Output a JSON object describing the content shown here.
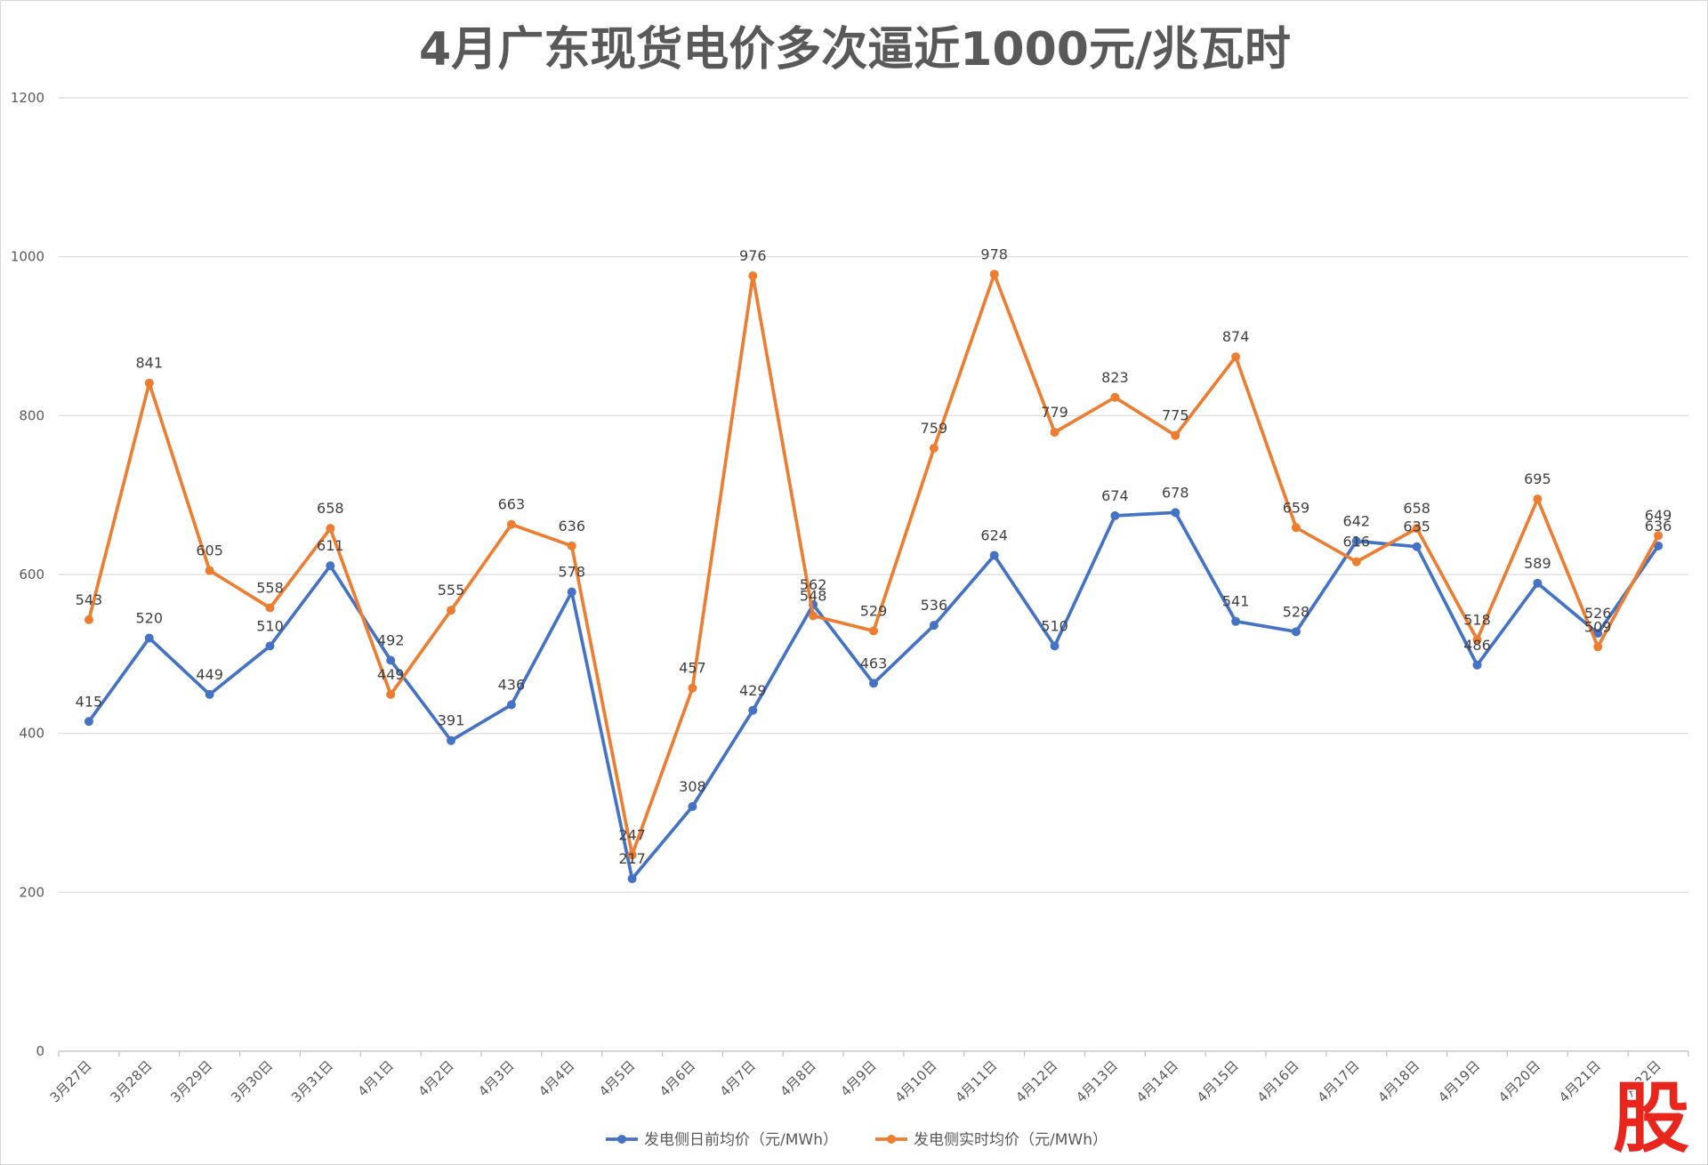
{
  "chart_data": {
    "type": "line",
    "title": "4月广东现货电价多次逼近1000元/兆瓦时",
    "categories": [
      "3月27日",
      "3月28日",
      "3月29日",
      "3月30日",
      "3月31日",
      "4月1日",
      "4月2日",
      "4月3日",
      "4月4日",
      "4月5日",
      "4月6日",
      "4月7日",
      "4月8日",
      "4月9日",
      "4月10日",
      "4月11日",
      "4月12日",
      "4月13日",
      "4月14日",
      "4月15日",
      "4月16日",
      "4月17日",
      "4月18日",
      "4月19日",
      "4月20日",
      "4月21日",
      "4月22日"
    ],
    "ylim": [
      0,
      1200
    ],
    "y_ticks": [
      0,
      200,
      400,
      600,
      800,
      1000,
      1200
    ],
    "grid": true,
    "legend": "bottom",
    "series": [
      {
        "name": "发电侧日前均价（元/MWh）",
        "color": "#4472C4",
        "values": [
          415,
          520,
          449,
          510,
          611,
          492,
          391,
          436,
          578,
          217,
          308,
          429,
          562,
          463,
          536,
          624,
          510,
          674,
          678,
          541,
          528,
          642,
          635,
          486,
          589,
          526,
          636
        ]
      },
      {
        "name": "发电侧实时均价（元/MWh）",
        "color": "#ED7D31",
        "values": [
          543,
          841,
          605,
          558,
          658,
          449,
          555,
          663,
          636,
          247,
          457,
          976,
          548,
          529,
          759,
          978,
          779,
          823,
          775,
          874,
          659,
          616,
          658,
          518,
          695,
          509,
          649
        ]
      }
    ]
  },
  "logo": {
    "text": "股",
    "color": "#E8261C"
  }
}
